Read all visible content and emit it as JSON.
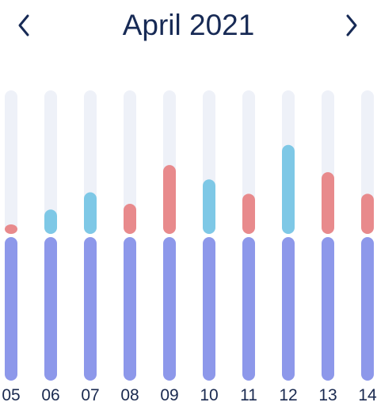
{
  "header": {
    "title": "April 2021",
    "prev_icon": "chevron-left-icon",
    "next_icon": "chevron-right-icon"
  },
  "colors": {
    "track": "#eef1f8",
    "base": "#8d98ea",
    "blue": "#7ec8e6",
    "red": "#e88a8c",
    "text": "#172a55"
  },
  "chart_data": {
    "type": "bar",
    "categories": [
      "05",
      "06",
      "07",
      "08",
      "09",
      "10",
      "11",
      "12",
      "13",
      "14"
    ],
    "top_segment": {
      "values": [
        0.06,
        0.17,
        0.29,
        0.21,
        0.48,
        0.38,
        0.28,
        0.62,
        0.43,
        0.28
      ],
      "colors": [
        "red",
        "blue",
        "blue",
        "red",
        "red",
        "blue",
        "red",
        "blue",
        "red",
        "red"
      ]
    },
    "base_segment": {
      "values": [
        1,
        1,
        1,
        1,
        1,
        1,
        1,
        1,
        1,
        1
      ]
    }
  }
}
